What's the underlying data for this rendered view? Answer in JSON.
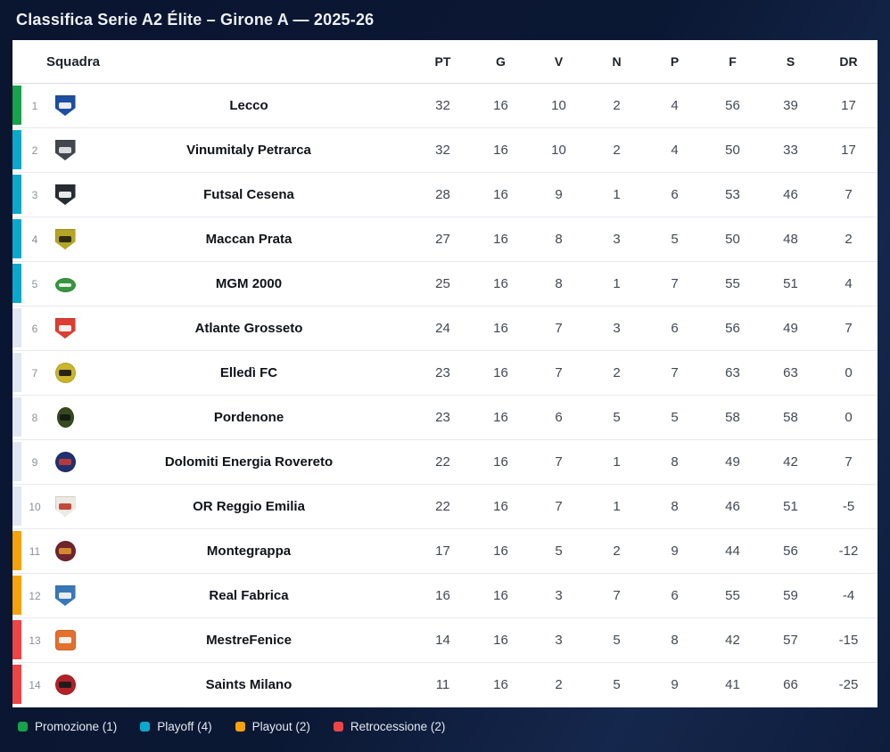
{
  "title": "Classifica Serie A2 Élite – Girone A — 2025-26",
  "table": {
    "team_column_header": "Squadra",
    "stat_columns": [
      "PT",
      "G",
      "V",
      "N",
      "P",
      "F",
      "S",
      "DR"
    ],
    "rows": [
      {
        "rank": "1",
        "team": "Lecco",
        "zone": "promozione",
        "stats": [
          32,
          16,
          10,
          2,
          4,
          56,
          39,
          17
        ],
        "logo": {
          "icon": "lecco-badge",
          "shape": "shield",
          "color": "#1d4fa0",
          "accent": "#e9ecf2"
        }
      },
      {
        "rank": "2",
        "team": "Vinumitaly Petrarca",
        "zone": "playoff",
        "stats": [
          32,
          16,
          10,
          2,
          4,
          50,
          33,
          17
        ],
        "logo": {
          "icon": "petrarca-badge",
          "shape": "shield",
          "color": "#42474f",
          "accent": "#d8dadd"
        }
      },
      {
        "rank": "3",
        "team": "Futsal Cesena",
        "zone": "playoff",
        "stats": [
          28,
          16,
          9,
          1,
          6,
          53,
          46,
          7
        ],
        "logo": {
          "icon": "cesena-badge",
          "shape": "shield",
          "color": "#272c33",
          "accent": "#e8e9ea"
        }
      },
      {
        "rank": "4",
        "team": "Maccan Prata",
        "zone": "playoff",
        "stats": [
          27,
          16,
          8,
          3,
          5,
          50,
          48,
          2
        ],
        "logo": {
          "icon": "maccan-prata-badge",
          "shape": "shield",
          "color": "#b5a524",
          "accent": "#2d2c16"
        }
      },
      {
        "rank": "5",
        "team": "MGM 2000",
        "zone": "playoff",
        "stats": [
          25,
          16,
          8,
          1,
          7,
          55,
          51,
          4
        ],
        "logo": {
          "icon": "mgm-2000-badge",
          "shape": "ellipse",
          "color": "#37963f",
          "accent": "#e9f1e7"
        }
      },
      {
        "rank": "6",
        "team": "Atlante Grosseto",
        "zone": "none",
        "stats": [
          24,
          16,
          7,
          3,
          6,
          56,
          49,
          7
        ],
        "logo": {
          "icon": "atlante-grosseto-badge",
          "shape": "shield",
          "color": "#dd3d32",
          "accent": "#f3efec"
        }
      },
      {
        "rank": "7",
        "team": "Elledì FC",
        "zone": "none",
        "stats": [
          23,
          16,
          7,
          2,
          7,
          63,
          63,
          0
        ],
        "logo": {
          "icon": "elledi-fc-badge",
          "shape": "circle",
          "color": "#c9b62a",
          "accent": "#27231a"
        }
      },
      {
        "rank": "8",
        "team": "Pordenone",
        "zone": "none",
        "stats": [
          23,
          16,
          6,
          5,
          5,
          58,
          58,
          0
        ],
        "logo": {
          "icon": "pordenone-badge",
          "shape": "oval-v",
          "color": "#36491f",
          "accent": "#161c10"
        }
      },
      {
        "rank": "9",
        "team": "Dolomiti Energia Rovereto",
        "zone": "none",
        "stats": [
          22,
          16,
          7,
          1,
          8,
          49,
          42,
          7
        ],
        "logo": {
          "icon": "rovereto-badge",
          "shape": "circle",
          "color": "#22316e",
          "accent": "#b4393f"
        }
      },
      {
        "rank": "10",
        "team": "OR Reggio Emilia",
        "zone": "none",
        "stats": [
          22,
          16,
          7,
          1,
          8,
          46,
          51,
          -5
        ],
        "logo": {
          "icon": "or-reggio-emilia-badge",
          "shape": "shield",
          "color": "#eceae2",
          "accent": "#c24a38"
        }
      },
      {
        "rank": "11",
        "team": "Montegrappa",
        "zone": "playout",
        "stats": [
          17,
          16,
          5,
          2,
          9,
          44,
          56,
          -12
        ],
        "logo": {
          "icon": "montegrappa-badge",
          "shape": "circle",
          "color": "#6f2430",
          "accent": "#d28a2c"
        }
      },
      {
        "rank": "12",
        "team": "Real Fabrica",
        "zone": "playout",
        "stats": [
          16,
          16,
          3,
          7,
          6,
          55,
          59,
          -4
        ],
        "logo": {
          "icon": "real-fabrica-badge",
          "shape": "shield",
          "color": "#3a77b7",
          "accent": "#e7edf4"
        }
      },
      {
        "rank": "13",
        "team": "MestreFenice",
        "zone": "retrocessione",
        "stats": [
          14,
          16,
          3,
          5,
          8,
          42,
          57,
          -15
        ],
        "logo": {
          "icon": "mestrefenice-badge",
          "shape": "square",
          "color": "#e4702d",
          "accent": "#f4f1ec"
        }
      },
      {
        "rank": "14",
        "team": "Saints Milano",
        "zone": "retrocessione",
        "stats": [
          11,
          16,
          2,
          5,
          9,
          41,
          66,
          -25
        ],
        "logo": {
          "icon": "saints-milano-badge",
          "shape": "circle",
          "color": "#b22228",
          "accent": "#1e1d1c"
        }
      }
    ]
  },
  "zone_colors": {
    "promozione": "#17a24b",
    "playoff": "#0ca8cb",
    "none": "#e1e6f0",
    "playout": "#f5a20b",
    "retrocessione": "#ee4446"
  },
  "legend": [
    {
      "label": "Promozione (1)",
      "color": "#17a24b"
    },
    {
      "label": "Playoff (4)",
      "color": "#0ca8cb"
    },
    {
      "label": "Playout (2)",
      "color": "#f5a20b"
    },
    {
      "label": "Retrocessione (2)",
      "color": "#ee4446"
    }
  ]
}
